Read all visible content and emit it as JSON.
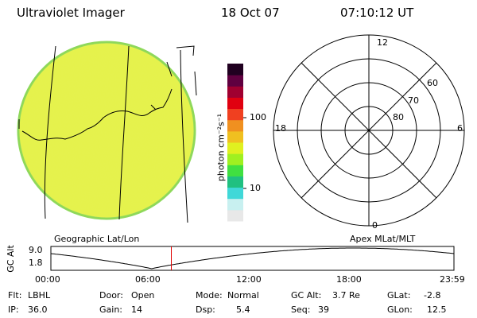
{
  "header": {
    "instrument": "Ultraviolet Imager",
    "date": "18 Oct 07",
    "time": "07:10:12 UT"
  },
  "colorbar": {
    "unit_label": "photon cm⁻²s⁻¹",
    "ticks": [
      {
        "label": "100",
        "value": 100
      },
      {
        "label": "10",
        "value": 10
      }
    ],
    "colors": [
      "#e8e8e8",
      "#c8f0f0",
      "#40d8d8",
      "#20c080",
      "#40e040",
      "#a0f020",
      "#e0f020",
      "#f0c020",
      "#f09020",
      "#f04020",
      "#e00010",
      "#a00030",
      "#600040",
      "#200020"
    ]
  },
  "left_panel": {
    "caption": "Geographic Lat/Lon",
    "disk_color": "#e6f34a",
    "disk_edge_color": "#8ed85a"
  },
  "right_panel": {
    "caption": "Apex MLat/MLT",
    "mlt_labels": {
      "top": "12",
      "left": "18",
      "right": "6",
      "bottom": "0"
    },
    "lat_labels": [
      "60",
      "70",
      "80"
    ]
  },
  "altitude_strip": {
    "y_label": "GC Alt",
    "y_ticks": [
      "9.0",
      "1.8"
    ],
    "x_ticks": [
      "00:00",
      "06:00",
      "12:00",
      "18:00",
      "23:59"
    ],
    "current_time_hours": 7.17,
    "marker_color": "#e00000"
  },
  "footer": {
    "row1": [
      {
        "label": "Flt:",
        "value": "LBHL"
      },
      {
        "label": "Door:",
        "value": "Open"
      },
      {
        "label": "Mode:",
        "value": "Normal"
      },
      {
        "label": "GC Alt:",
        "value": "3.7 Re"
      },
      {
        "label": "GLat:",
        "value": "-2.8"
      }
    ],
    "row2": [
      {
        "label": "IP:",
        "value": "36.0"
      },
      {
        "label": "Gain:",
        "value": "14"
      },
      {
        "label": "Dsp:",
        "value": "5.4"
      },
      {
        "label": "Seq:",
        "value": "39"
      },
      {
        "label": "GLon:",
        "value": "12.5"
      }
    ]
  }
}
